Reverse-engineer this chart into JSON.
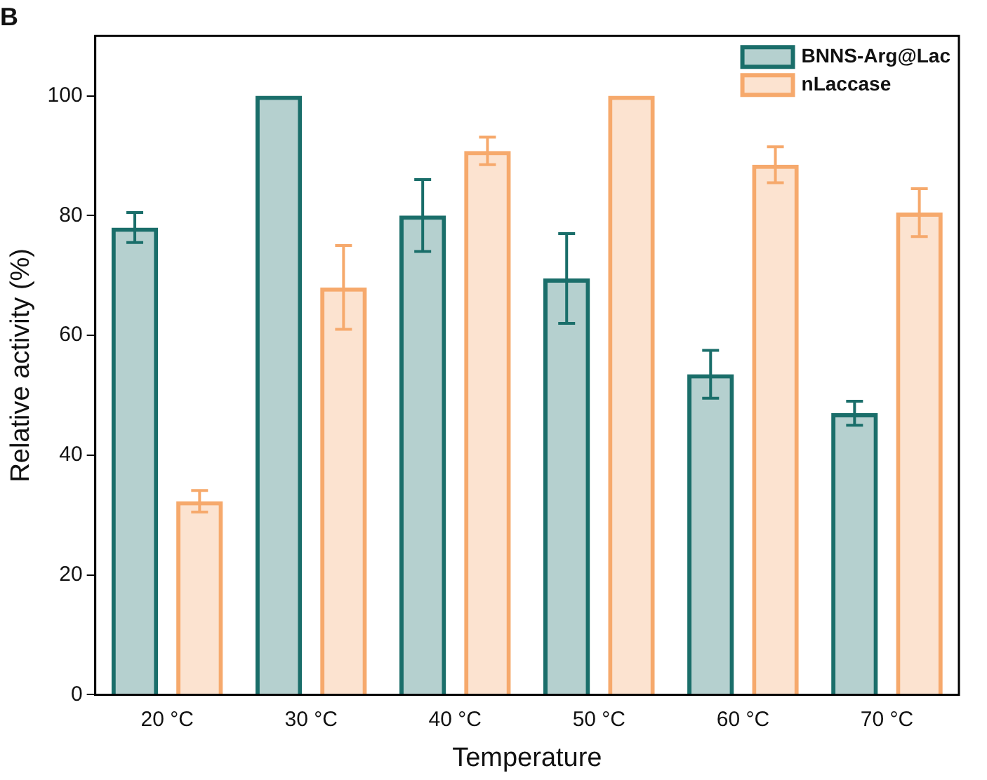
{
  "chart_data": {
    "type": "bar",
    "title": "B",
    "xlabel": "Temperature",
    "ylabel": "Relative activity (%)",
    "categories": [
      "20 °C",
      "30 °C",
      "40 °C",
      "50 °C",
      "60 °C",
      "70 °C"
    ],
    "series": [
      {
        "name": "BNNS-Arg@Lac",
        "color": "#1a6e6a",
        "values": [
          78,
          100,
          80,
          69.5,
          53.5,
          47
        ],
        "errors": [
          2.5,
          null,
          6,
          7.5,
          4,
          2
        ]
      },
      {
        "name": "nLaccase",
        "color": "#f6a96c",
        "values": [
          32.3,
          68,
          90.8,
          100,
          88.5,
          80.5
        ],
        "errors": [
          1.8,
          7,
          2.3,
          null,
          3,
          4
        ]
      }
    ],
    "ylim": [
      0,
      110
    ],
    "yticks": [
      0,
      20,
      40,
      60,
      80,
      100
    ],
    "grid": false,
    "legend": "top right"
  }
}
